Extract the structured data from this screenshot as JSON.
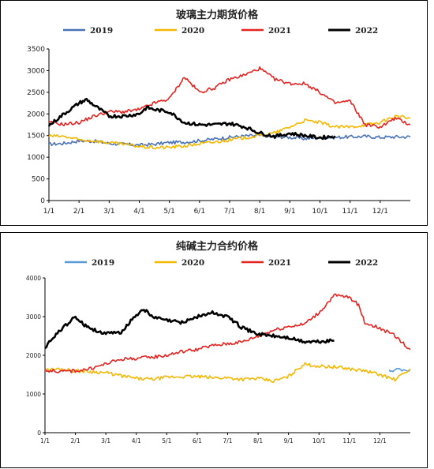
{
  "chart_data": [
    {
      "type": "line",
      "title": "玻璃主力期货价格",
      "ylim": [
        0,
        3500
      ],
      "yticks": [
        "0",
        "500",
        "1000",
        "1500",
        "2000",
        "2500",
        "3000",
        "3500"
      ],
      "xticks": [
        "1/1",
        "2/1",
        "3/1",
        "4/1",
        "5/1",
        "6/1",
        "7/1",
        "8/1",
        "9/1",
        "10/1",
        "11/1",
        "12/1"
      ],
      "grid": false,
      "legend": "top",
      "series": [
        {
          "name": "2019",
          "color": "#4a72b8",
          "x_months": [
            0,
            0.5,
            1,
            1.5,
            2,
            2.5,
            3,
            3.5,
            4,
            4.5,
            5,
            5.5,
            6,
            6.5,
            7,
            7.5,
            8,
            8.5,
            9,
            9.5,
            10,
            10.5,
            11,
            11.5,
            12
          ],
          "values": [
            1300,
            1320,
            1380,
            1370,
            1320,
            1300,
            1280,
            1300,
            1340,
            1350,
            1380,
            1420,
            1460,
            1490,
            1500,
            1480,
            1460,
            1430,
            1450,
            1460,
            1470,
            1480,
            1460,
            1470,
            1470
          ]
        },
        {
          "name": "2020",
          "color": "#f5b800",
          "x_months": [
            0,
            0.5,
            1,
            1.5,
            2,
            2.5,
            3,
            3.5,
            4,
            4.5,
            5,
            5.5,
            6,
            6.5,
            7,
            7.5,
            8,
            8.5,
            9,
            9.5,
            10,
            10.5,
            11,
            11.5,
            12
          ],
          "values": [
            1490,
            1480,
            1400,
            1380,
            1330,
            1300,
            1250,
            1220,
            1230,
            1260,
            1310,
            1350,
            1400,
            1450,
            1500,
            1560,
            1700,
            1850,
            1800,
            1700,
            1700,
            1750,
            1800,
            1950,
            1900
          ]
        },
        {
          "name": "2021",
          "color": "#e52320",
          "x_months": [
            0,
            0.5,
            1,
            1.5,
            2,
            2.5,
            3,
            3.5,
            4,
            4.5,
            5,
            5.5,
            6,
            6.5,
            7,
            7.5,
            8,
            8.5,
            9,
            9.5,
            10,
            10.5,
            11,
            11.5,
            12
          ],
          "values": [
            1800,
            1760,
            1800,
            1950,
            2050,
            2050,
            2100,
            2250,
            2350,
            2850,
            2500,
            2600,
            2800,
            2900,
            3050,
            2800,
            2700,
            2700,
            2500,
            2250,
            2300,
            1750,
            1700,
            1900,
            1750
          ]
        },
        {
          "name": "2022",
          "color": "#000000",
          "x_months": [
            0,
            0.5,
            1,
            1.25,
            1.5,
            2,
            2.5,
            3,
            3.25,
            3.5,
            4,
            4.5,
            5,
            5.5,
            6,
            6.5,
            7,
            7.5,
            8,
            8.5,
            9,
            9.5
          ],
          "values": [
            1730,
            2000,
            2250,
            2330,
            2200,
            1950,
            1950,
            2000,
            2150,
            2100,
            2050,
            1800,
            1750,
            1750,
            1780,
            1700,
            1560,
            1480,
            1550,
            1500,
            1450,
            1490
          ]
        }
      ]
    },
    {
      "type": "line",
      "title": "纯碱主力合约价格",
      "ylim": [
        0,
        4000
      ],
      "yticks": [
        "0",
        "1000",
        "2000",
        "3000",
        "4000"
      ],
      "xticks": [
        "1/1",
        "2/1",
        "3/1",
        "4/1",
        "5/1",
        "6/1",
        "7/1",
        "8/1",
        "9/1",
        "10/1",
        "11/1",
        "12/1"
      ],
      "grid": false,
      "legend": "top",
      "series": [
        {
          "name": "2019",
          "color": "#5b9bd5",
          "x_months": [
            11.3,
            11.6,
            11.9,
            12
          ],
          "values": [
            1590,
            1640,
            1620,
            1640
          ]
        },
        {
          "name": "2020",
          "color": "#f5b800",
          "x_months": [
            0,
            0.5,
            1,
            1.5,
            2,
            2.5,
            3,
            3.5,
            4,
            4.5,
            5,
            5.5,
            6,
            6.5,
            7,
            7.5,
            8,
            8.5,
            9,
            9.5,
            10,
            10.5,
            11,
            11.5,
            12
          ],
          "values": [
            1620,
            1650,
            1600,
            1580,
            1550,
            1470,
            1400,
            1380,
            1430,
            1450,
            1450,
            1420,
            1420,
            1380,
            1400,
            1330,
            1450,
            1770,
            1720,
            1700,
            1650,
            1600,
            1500,
            1370,
            1640
          ]
        },
        {
          "name": "2021",
          "color": "#e52320",
          "x_months": [
            0,
            0.5,
            1,
            1.5,
            2,
            2.5,
            3,
            3.5,
            4,
            4.5,
            5,
            5.5,
            6,
            6.5,
            7,
            7.5,
            8,
            8.5,
            9,
            9.5,
            10,
            10.3,
            10.5,
            11,
            11.5,
            12
          ],
          "values": [
            1620,
            1580,
            1600,
            1650,
            1780,
            1900,
            1920,
            1950,
            2000,
            2100,
            2150,
            2250,
            2300,
            2350,
            2500,
            2650,
            2750,
            2800,
            3100,
            3550,
            3500,
            3300,
            2850,
            2700,
            2500,
            2150
          ]
        },
        {
          "name": "2022",
          "color": "#000000",
          "x_months": [
            0,
            0.5,
            1,
            1.25,
            1.5,
            2,
            2.5,
            3,
            3.25,
            3.5,
            4,
            4.5,
            5,
            5.5,
            6,
            6.5,
            7,
            7.5,
            8,
            8.5,
            9,
            9.5
          ],
          "values": [
            2200,
            2650,
            3000,
            2800,
            2700,
            2550,
            2600,
            3050,
            3200,
            3000,
            2900,
            2850,
            3000,
            3100,
            3000,
            2700,
            2550,
            2500,
            2450,
            2350,
            2350,
            2380
          ]
        }
      ]
    }
  ]
}
